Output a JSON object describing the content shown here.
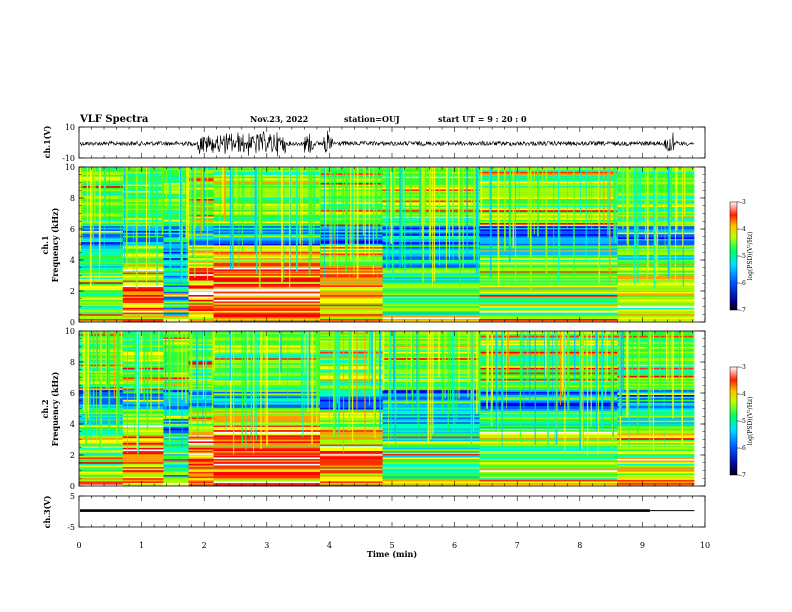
{
  "header": {
    "title": "VLF Spectra",
    "date": "Nov.23, 2022",
    "station": "station=OUJ",
    "start": "start UT =  9 : 20 : 0"
  },
  "chart_data": {
    "type": "heatmap",
    "xlabel": "Time (min)",
    "xlim": [
      0,
      10
    ],
    "xticks": [
      "0",
      "1",
      "2",
      "3",
      "4",
      "5",
      "6",
      "7",
      "8",
      "9",
      "10"
    ],
    "panels": [
      {
        "id": "ch1_waveform",
        "ylabel": "ch.1(V)",
        "ylim": [
          -10,
          10
        ],
        "yticks": [
          "10",
          "-10"
        ],
        "description_series": "waveform",
        "bursts_min": [
          [
            1.9,
            3.3
          ],
          [
            3.6,
            3.75
          ],
          [
            3.9,
            4.05
          ],
          [
            9.35,
            9.5
          ]
        ],
        "record_end_min": 9.83
      },
      {
        "id": "ch1_spectrogram",
        "ylabel": "ch.1",
        "ylabel2": "Frequency (kHz)",
        "ylim": [
          0,
          10
        ],
        "yticks": [
          "10",
          "8",
          "6",
          "4",
          "2",
          "0"
        ],
        "colorbar": {
          "label": "log(PSD)(V²/Hz)",
          "ticks": [
            "-3",
            "-4",
            "-5",
            "-6",
            "-7"
          ],
          "range": [
            -7,
            -3
          ]
        },
        "segments_min": [
          0,
          0.7,
          1.35,
          1.75,
          2.15,
          3.85,
          4.85,
          6.4,
          8.6,
          9.83
        ],
        "record_end_min": 9.83
      },
      {
        "id": "ch2_spectrogram",
        "ylabel": "ch.2",
        "ylabel2": "Frequency (kHz)",
        "ylim": [
          0,
          10
        ],
        "yticks": [
          "10",
          "8",
          "6",
          "4",
          "2",
          "0"
        ],
        "colorbar": {
          "label": "log(PSD)(V²/Hz)",
          "ticks": [
            "-3",
            "-4",
            "-5",
            "-6",
            "-7"
          ],
          "range": [
            -7,
            -3
          ]
        },
        "segments_min": [
          0,
          0.7,
          1.35,
          1.75,
          2.15,
          3.85,
          4.85,
          6.4,
          8.6,
          9.83
        ],
        "record_end_min": 9.83
      },
      {
        "id": "ch3_level",
        "ylabel": "ch.3(V)",
        "ylim": [
          -5,
          5
        ],
        "yticks": [
          "5",
          "-5"
        ],
        "level_v": 0.3,
        "level_end_min": 9.12,
        "record_end_min": 9.83
      }
    ]
  },
  "colors": {
    "colormap": [
      "#000060",
      "#0000ff",
      "#00c0ff",
      "#00ff80",
      "#80ff00",
      "#ffff00",
      "#ff8000",
      "#ff0000",
      "#ffffff"
    ]
  }
}
